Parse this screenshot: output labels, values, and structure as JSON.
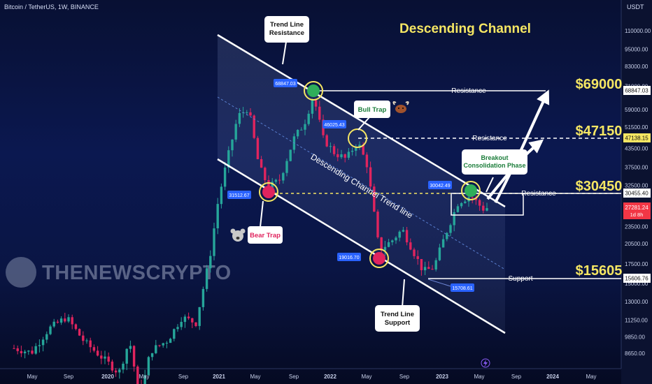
{
  "header": {
    "symbol_title": "Bitcoin / TetherUS, 1W, BINANCE",
    "currency": "USDT"
  },
  "title": "Descending Channel",
  "watermark": "THENEWSCRYPTO",
  "colors": {
    "bull": "#26a69a",
    "bear": "#e0245e",
    "accent_yellow": "#f5e663",
    "tag_blue": "#2962ff",
    "price_red": "#f23645",
    "bull_trap_text": "#1b7d3a",
    "bear_trap_text": "#e0245e"
  },
  "chart_data": {
    "type": "candlestick",
    "x_ticks": [
      "May",
      "Sep",
      "2020",
      "May",
      "Sep",
      "2021",
      "May",
      "Sep",
      "2022",
      "May",
      "Sep",
      "2023",
      "May",
      "Sep",
      "2024",
      "May"
    ],
    "y_ticks": [
      110000,
      95000,
      83000,
      71000,
      59000,
      51500,
      43500,
      37500,
      32500,
      23500,
      20500,
      17500,
      15000,
      13000,
      11250,
      9850,
      8650
    ],
    "y_scale": "log",
    "price_labels": [
      {
        "value": "68847.03",
        "style": "white"
      },
      {
        "value": "47138.15",
        "style": "yellow"
      },
      {
        "value": "30455.40",
        "style": "white"
      },
      {
        "value": "27281.24",
        "style": "red"
      },
      {
        "value": "1d 8h",
        "style": "red-sub"
      },
      {
        "value": "15606.76",
        "style": "white"
      }
    ],
    "levels": [
      {
        "label": "Resistance",
        "price_tag": "$69000",
        "value": 69000
      },
      {
        "label": "Resistance",
        "price_tag": "$47150",
        "value": 47150
      },
      {
        "label": "Resistance",
        "price_tag": "$30450",
        "value": 30450
      },
      {
        "label": "Support",
        "price_tag": "$15605",
        "value": 15605
      }
    ],
    "points": [
      {
        "label": "68847.03",
        "value": 68847.03
      },
      {
        "label": "46025.43",
        "value": 46025.43
      },
      {
        "label": "31512.67",
        "value": 31512.67
      },
      {
        "label": "30042.49",
        "value": 30042.49
      },
      {
        "label": "19016.70",
        "value": 19016.7
      },
      {
        "label": "15708.61",
        "value": 15708.61
      }
    ],
    "annotations": {
      "trend_resistance": "Trend Line\nResistance",
      "trend_support": "Trend Line\nSupport",
      "bull_trap": "Bull Trap",
      "bear_trap": "Bear Trap",
      "breakout": "Breakout\nConsolidation Phase",
      "channel_label": "Descending Channel Trend line"
    }
  }
}
